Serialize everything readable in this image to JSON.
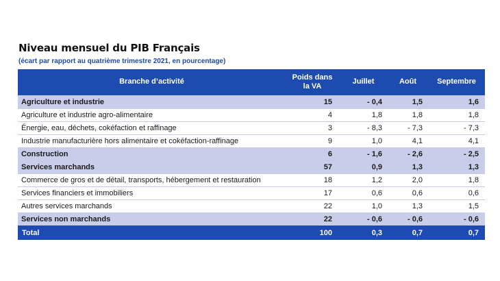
{
  "title": "Niveau mensuel du PIB Français",
  "subtitle": "(écart par rapport au quatrième trimestre 2021, en pourcentage)",
  "headers": {
    "branch": "Branche d’activité",
    "weight_line1": "Poids dans",
    "weight_line2": "la VA",
    "july": "Juillet",
    "august": "Août",
    "september": "Septembre"
  },
  "rows": [
    {
      "label": "Agriculture et industrie",
      "weight": "15",
      "july": "- 0,4",
      "august": "1,5",
      "september": "1,6",
      "bold": true
    },
    {
      "label": "Agriculture et industrie agro-alimentaire",
      "weight": "4",
      "july": "1,8",
      "august": "1,8",
      "september": "1,8",
      "bold": false
    },
    {
      "label": "Énergie, eau, déchets, cokéfaction et raffinage",
      "weight": "3",
      "july": "- 8,3",
      "august": "- 7,3",
      "september": "- 7,3",
      "bold": false
    },
    {
      "label": "Industrie manufacturière hors alimentaire et cokéfaction-raffinage",
      "weight": "9",
      "july": "1,0",
      "august": "4,1",
      "september": "4,1",
      "bold": false
    },
    {
      "label": "Construction",
      "weight": "6",
      "july": "- 1,6",
      "august": "- 2,6",
      "september": "- 2,5",
      "bold": true
    },
    {
      "label": "Services marchands",
      "weight": "57",
      "july": "0,9",
      "august": "1,3",
      "september": "1,3",
      "bold": true
    },
    {
      "label": "Commerce de gros et de détail, transports, hébergement et restauration",
      "weight": "18",
      "july": "1,2",
      "august": "2,0",
      "september": "1,8",
      "bold": false
    },
    {
      "label": "Services financiers et immobiliers",
      "weight": "17",
      "july": "0,6",
      "august": "0,6",
      "september": "0,6",
      "bold": false
    },
    {
      "label": "Autres services marchands",
      "weight": "22",
      "july": "1,0",
      "august": "1,3",
      "september": "1,5",
      "bold": false
    },
    {
      "label": "Services non marchands",
      "weight": "22",
      "july": "- 0,6",
      "august": "- 0,6",
      "september": "- 0,6",
      "bold": true
    }
  ],
  "total": {
    "label": "Total",
    "weight": "100",
    "july": "0,3",
    "august": "0,7",
    "september": "0,7"
  },
  "colors": {
    "header_blue": "#1e4bb0",
    "highlight_row": "#c9cdea",
    "subtitle_blue": "#1f4aa8"
  }
}
